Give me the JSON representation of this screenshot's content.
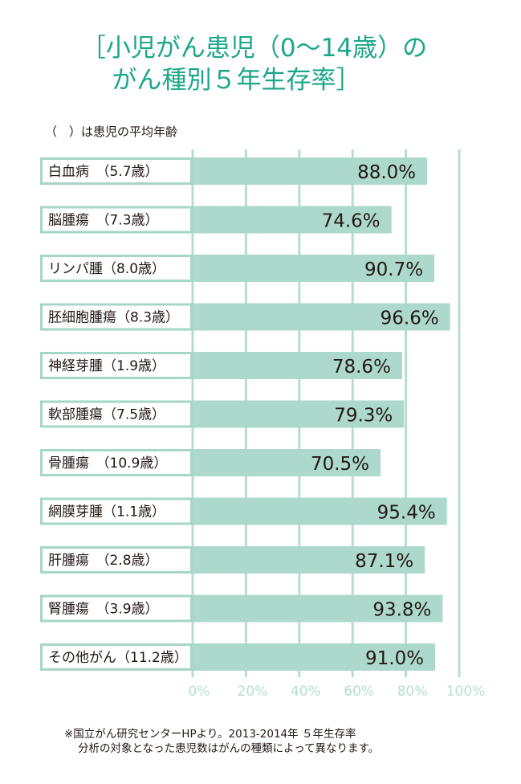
{
  "title_line1": "［小児がん患児（0〜14歳）の",
  "title_line2": "がん種別５年生存率］",
  "note": "（　）は患児の平均年齢",
  "footnote_line1": "※国立がん研究センターHPより。2013-2014年  ５年生存率",
  "footnote_line2": "分析の対象となった患児数はがんの種類によって異なります。",
  "colors": {
    "title": "#1aa68b",
    "bar": "#acd9cc",
    "grid": "#b5ded3",
    "text": "#231815"
  },
  "chart_data": {
    "type": "bar",
    "orientation": "horizontal",
    "title": "［小児がん患児（0〜14歳）のがん種別５年生存率］",
    "categories": [
      "白血病　（5.7歳）",
      "脳腫瘍　（7.3歳）",
      "リンパ腫（8.0歳）",
      "胚細胞腫瘍（8.3歳）",
      "神経芽腫（1.9歳）",
      "軟部腫瘍（7.5歳）",
      "骨腫瘍　（10.9歳）",
      "網膜芽腫（1.1歳）",
      "肝腫瘍　（2.8歳）",
      "腎腫瘍　（3.9歳）",
      "その他がん（11.2歳）"
    ],
    "values": [
      88.0,
      74.6,
      90.7,
      96.6,
      78.6,
      79.3,
      70.5,
      95.4,
      87.1,
      93.8,
      91.0
    ],
    "value_labels": [
      "88.0%",
      "74.6%",
      "90.7%",
      "96.6%",
      "78.6%",
      "79.3%",
      "70.5%",
      "95.4%",
      "87.1%",
      "93.8%",
      "91.0%"
    ],
    "xlim": [
      0,
      100
    ],
    "xticks": [
      "0%",
      "20%",
      "40%",
      "60%",
      "80%",
      "100%"
    ],
    "grid": true
  }
}
